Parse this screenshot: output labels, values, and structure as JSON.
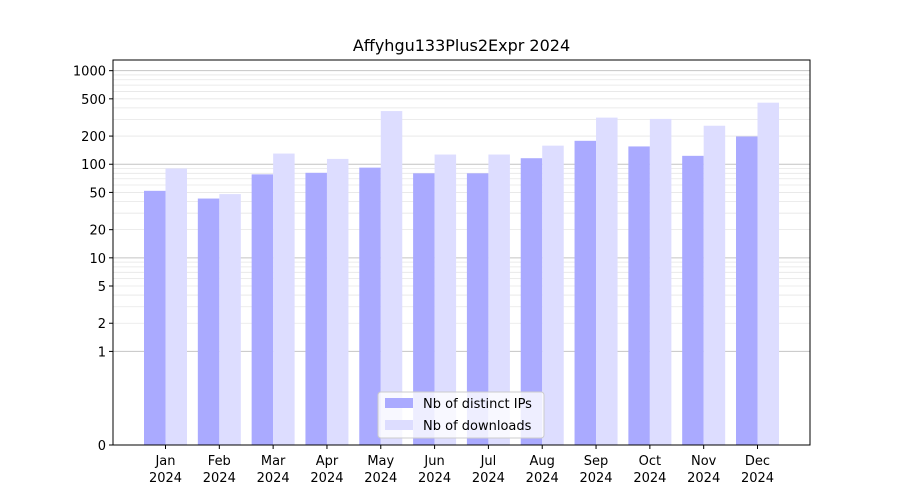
{
  "chart_data": {
    "type": "bar",
    "title": "Affyhgu133Plus2Expr 2024",
    "xlabel": "",
    "ylabel": "",
    "y_scale": "symlog",
    "ylim": [
      0,
      1300
    ],
    "categories": [
      {
        "month": "Jan",
        "year": "2024"
      },
      {
        "month": "Feb",
        "year": "2024"
      },
      {
        "month": "Mar",
        "year": "2024"
      },
      {
        "month": "Apr",
        "year": "2024"
      },
      {
        "month": "May",
        "year": "2024"
      },
      {
        "month": "Jun",
        "year": "2024"
      },
      {
        "month": "Jul",
        "year": "2024"
      },
      {
        "month": "Aug",
        "year": "2024"
      },
      {
        "month": "Sep",
        "year": "2024"
      },
      {
        "month": "Oct",
        "year": "2024"
      },
      {
        "month": "Nov",
        "year": "2024"
      },
      {
        "month": "Dec",
        "year": "2024"
      }
    ],
    "yticks": [
      0,
      1,
      2,
      5,
      10,
      20,
      50,
      100,
      200,
      500,
      1000
    ],
    "series": [
      {
        "name": "Nb of distinct IPs",
        "color": "#aaaaff",
        "values": [
          52,
          43,
          78,
          81,
          92,
          80,
          80,
          116,
          178,
          155,
          123,
          198
        ]
      },
      {
        "name": "Nb of downloads",
        "color": "#ddddff",
        "values": [
          90,
          48,
          130,
          114,
          370,
          127,
          127,
          158,
          315,
          305,
          258,
          455
        ]
      }
    ],
    "grid": true,
    "legend_position": "bottom-center"
  }
}
